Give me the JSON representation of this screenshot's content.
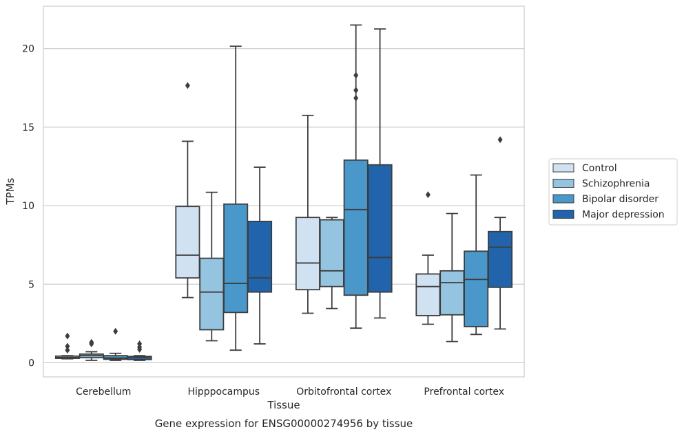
{
  "chart_data": {
    "type": "box",
    "caption": "Gene expression for ENSG00000274956 by tissue",
    "xlabel": "Tissue",
    "ylabel": "TPMs",
    "ylim": [
      -0.9,
      22.7
    ],
    "yticks": [
      0,
      5,
      10,
      15,
      20
    ],
    "grid": true,
    "legend_position": "right",
    "categories": [
      "Cerebellum",
      "Hipppocampus",
      "Orbitofrontal cortex",
      "Prefrontal cortex"
    ],
    "series": [
      {
        "name": "Control",
        "color": "#d0e1f2",
        "boxes": [
          {
            "whislo": 0.25,
            "q1": 0.28,
            "med": 0.33,
            "q3": 0.42,
            "whishi": 0.45,
            "fliers": [
              0.8,
              1.05,
              1.7
            ]
          },
          {
            "whislo": 4.15,
            "q1": 5.4,
            "med": 6.85,
            "q3": 9.95,
            "whishi": 14.1,
            "fliers": [
              17.65
            ]
          },
          {
            "whislo": 3.15,
            "q1": 4.65,
            "med": 6.35,
            "q3": 9.25,
            "whishi": 15.75,
            "fliers": []
          },
          {
            "whislo": 2.45,
            "q1": 3.0,
            "med": 4.85,
            "q3": 5.65,
            "whishi": 6.85,
            "fliers": [
              10.7
            ]
          }
        ]
      },
      {
        "name": "Schizophrenia",
        "color": "#94c4df",
        "boxes": [
          {
            "whislo": 0.15,
            "q1": 0.32,
            "med": 0.45,
            "q3": 0.55,
            "whishi": 0.7,
            "fliers": [
              1.2,
              1.3
            ]
          },
          {
            "whislo": 1.4,
            "q1": 2.1,
            "med": 4.5,
            "q3": 6.65,
            "whishi": 10.85,
            "fliers": []
          },
          {
            "whislo": 3.45,
            "q1": 4.85,
            "med": 5.85,
            "q3": 9.1,
            "whishi": 9.25,
            "fliers": []
          },
          {
            "whislo": 1.35,
            "q1": 3.05,
            "med": 5.1,
            "q3": 5.85,
            "whishi": 9.5,
            "fliers": []
          }
        ]
      },
      {
        "name": "Bipolar disorder",
        "color": "#4a98c9",
        "boxes": [
          {
            "whislo": 0.15,
            "q1": 0.22,
            "med": 0.3,
            "q3": 0.45,
            "whishi": 0.6,
            "fliers": [
              2.0
            ]
          },
          {
            "whislo": 0.8,
            "q1": 3.2,
            "med": 5.05,
            "q3": 10.1,
            "whishi": 20.15,
            "fliers": []
          },
          {
            "whislo": 2.2,
            "q1": 4.3,
            "med": 9.75,
            "q3": 12.9,
            "whishi": 21.5,
            "fliers": [
              16.85,
              17.35,
              18.3
            ]
          },
          {
            "whislo": 1.8,
            "q1": 2.3,
            "med": 5.3,
            "q3": 7.1,
            "whishi": 11.95,
            "fliers": []
          }
        ]
      },
      {
        "name": "Major depression",
        "color": "#2164ab",
        "boxes": [
          {
            "whislo": 0.15,
            "q1": 0.2,
            "med": 0.35,
            "q3": 0.4,
            "whishi": 0.45,
            "fliers": [
              0.85,
              1.0,
              1.2
            ]
          },
          {
            "whislo": 1.2,
            "q1": 4.5,
            "med": 5.4,
            "q3": 9.0,
            "whishi": 12.45,
            "fliers": []
          },
          {
            "whislo": 2.85,
            "q1": 4.5,
            "med": 6.7,
            "q3": 12.6,
            "whishi": 21.25,
            "fliers": []
          },
          {
            "whislo": 2.15,
            "q1": 4.8,
            "med": 7.35,
            "q3": 8.35,
            "whishi": 9.25,
            "fliers": [
              14.2
            ]
          }
        ]
      }
    ]
  }
}
